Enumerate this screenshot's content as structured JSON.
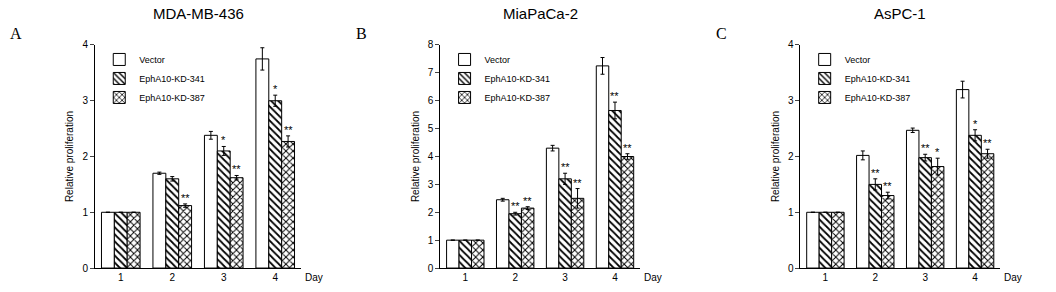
{
  "chart_data": [
    {
      "type": "bar",
      "panel": "A",
      "title": "MDA-MB-436",
      "ylabel": "Relative proliferation",
      "xlabel": "Day",
      "categories": [
        "1",
        "2",
        "3",
        "4"
      ],
      "ylim": [
        0,
        4
      ],
      "yticks": [
        0,
        1,
        2,
        3,
        4
      ],
      "grid": false,
      "legend": "top left",
      "series": [
        {
          "name": "Vector",
          "color": "#ffffff",
          "marker": "solid",
          "values": [
            1,
            1.7,
            2.38,
            3.75
          ],
          "errors": [
            0,
            0.02,
            0.07,
            0.2
          ],
          "significance": [
            null,
            null,
            null,
            null
          ]
        },
        {
          "name": "EphA10-KD-341",
          "color": "#ffffff",
          "marker": "hatch",
          "values": [
            1,
            1.6,
            2.1,
            3.0
          ],
          "errors": [
            0,
            0.04,
            0.08,
            0.1
          ],
          "significance": [
            null,
            null,
            "*",
            "*"
          ]
        },
        {
          "name": "EphA10-KD-387",
          "color": "#ffffff",
          "marker": "crosshatch",
          "values": [
            1,
            1.12,
            1.62,
            2.27
          ],
          "errors": [
            0,
            0.03,
            0.04,
            0.1
          ],
          "significance": [
            null,
            "**",
            "**",
            "**"
          ]
        }
      ]
    },
    {
      "type": "bar",
      "panel": "B",
      "title": "MiaPaCa-2",
      "ylabel": "Relative proliferation",
      "xlabel": "Day",
      "categories": [
        "1",
        "2",
        "3",
        "4"
      ],
      "ylim": [
        0,
        8
      ],
      "yticks": [
        0,
        1,
        2,
        3,
        4,
        5,
        6,
        7,
        8
      ],
      "grid": false,
      "legend": "top left",
      "series": [
        {
          "name": "Vector",
          "color": "#ffffff",
          "marker": "solid",
          "values": [
            1,
            2.45,
            4.3,
            7.25
          ],
          "errors": [
            0,
            0.05,
            0.1,
            0.3
          ],
          "significance": [
            null,
            null,
            null,
            null
          ]
        },
        {
          "name": "EphA10-KD-341",
          "color": "#ffffff",
          "marker": "hatch",
          "values": [
            1,
            1.95,
            3.2,
            5.65
          ],
          "errors": [
            0,
            0.05,
            0.2,
            0.3
          ],
          "significance": [
            null,
            "**",
            "**",
            "**"
          ]
        },
        {
          "name": "EphA10-KD-387",
          "color": "#ffffff",
          "marker": "crosshatch",
          "values": [
            1,
            2.15,
            2.5,
            4.0
          ],
          "errors": [
            0,
            0.05,
            0.35,
            0.1
          ],
          "significance": [
            null,
            "**",
            "**",
            "**"
          ]
        }
      ]
    },
    {
      "type": "bar",
      "panel": "C",
      "title": "AsPC-1",
      "ylabel": "Relative proliferation",
      "xlabel": "Day",
      "categories": [
        "1",
        "2",
        "3",
        "4"
      ],
      "ylim": [
        0,
        4
      ],
      "yticks": [
        0,
        1,
        2,
        3,
        4
      ],
      "grid": false,
      "legend": "top left",
      "series": [
        {
          "name": "Vector",
          "color": "#ffffff",
          "marker": "solid",
          "values": [
            1,
            2.02,
            2.47,
            3.2
          ],
          "errors": [
            0,
            0.08,
            0.04,
            0.15
          ],
          "significance": [
            null,
            null,
            null,
            null
          ]
        },
        {
          "name": "EphA10-KD-341",
          "color": "#ffffff",
          "marker": "hatch",
          "values": [
            1,
            1.5,
            1.98,
            2.38
          ],
          "errors": [
            0,
            0.1,
            0.06,
            0.1
          ],
          "significance": [
            null,
            "**",
            "**",
            "*"
          ]
        },
        {
          "name": "EphA10-KD-387",
          "color": "#ffffff",
          "marker": "crosshatch",
          "values": [
            1,
            1.3,
            1.82,
            2.05
          ],
          "errors": [
            0,
            0.06,
            0.15,
            0.08
          ],
          "significance": [
            null,
            "**",
            "*",
            "**"
          ]
        }
      ]
    }
  ]
}
